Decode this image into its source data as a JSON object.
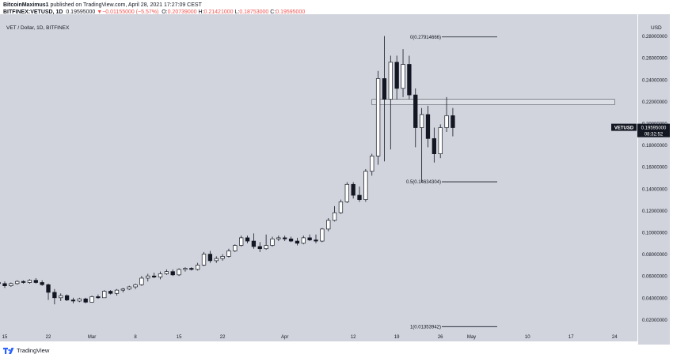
{
  "header": {
    "author": "BitcoinMaximus1",
    "published": " published on TradingView.com, April 28, 2021 17:27:09 CEST",
    "symbol": "BITFINEX:VETUSD, 1D",
    "price": "0.19595000",
    "change": "−0.01155000 (−5.57%)",
    "o_label": "O:",
    "o_val": "0.20739000",
    "h_label": "H:",
    "h_val": "0.21421000",
    "l_label": "L:",
    "l_val": "0.18753000",
    "c_label": "C:",
    "c_val": "0.19595000"
  },
  "footer": {
    "brand": "TradingView"
  },
  "colors": {
    "background": "#d1d4dc",
    "up_candle": "#ffffff",
    "down_candle": "#131722",
    "line": "#131722",
    "label_bg": "#131722"
  },
  "chart_data": {
    "type": "candlestick",
    "title": "VET / Dollar, 1D, BITFINEX",
    "ylabel": "USD",
    "ylim": [
      0.0,
      0.3
    ],
    "y_ticks": [
      0.02,
      0.04,
      0.06,
      0.08,
      0.1,
      0.12,
      0.14,
      0.16,
      0.18,
      0.2,
      0.22,
      0.24,
      0.26,
      0.28
    ],
    "y_tick_labels": [
      "0.02000000",
      "0.04000000",
      "0.06000000",
      "0.08000000",
      "0.10000000",
      "0.12000000",
      "0.14000000",
      "0.16000000",
      "0.18000000",
      "0.20000000",
      "0.22000000",
      "0.24000000",
      "0.26000000",
      "0.28000000"
    ],
    "x_tick_labels": [
      "15",
      "22",
      "Mar",
      "8",
      "15",
      "22",
      "Apr",
      "12",
      "19",
      "26",
      "May",
      "10",
      "17",
      "24"
    ],
    "x_tick_dates": [
      "2021-02-15",
      "2021-02-22",
      "2021-03-01",
      "2021-03-08",
      "2021-03-15",
      "2021-03-22",
      "2021-04-01",
      "2021-04-12",
      "2021-04-19",
      "2021-04-26",
      "2021-05-01",
      "2021-05-10",
      "2021-05-17",
      "2021-05-24"
    ],
    "candles": [
      {
        "date": "2021-02-13",
        "o": 0.055,
        "h": 0.057,
        "l": 0.05,
        "c": 0.054
      },
      {
        "date": "2021-02-14",
        "o": 0.054,
        "h": 0.056,
        "l": 0.051,
        "c": 0.053
      },
      {
        "date": "2021-02-15",
        "o": 0.053,
        "h": 0.055,
        "l": 0.049,
        "c": 0.051
      },
      {
        "date": "2021-02-16",
        "o": 0.051,
        "h": 0.054,
        "l": 0.05,
        "c": 0.053
      },
      {
        "date": "2021-02-17",
        "o": 0.053,
        "h": 0.056,
        "l": 0.052,
        "c": 0.055
      },
      {
        "date": "2021-02-18",
        "o": 0.055,
        "h": 0.056,
        "l": 0.053,
        "c": 0.054
      },
      {
        "date": "2021-02-19",
        "o": 0.054,
        "h": 0.057,
        "l": 0.053,
        "c": 0.056
      },
      {
        "date": "2021-02-20",
        "o": 0.056,
        "h": 0.058,
        "l": 0.053,
        "c": 0.054
      },
      {
        "date": "2021-02-21",
        "o": 0.054,
        "h": 0.056,
        "l": 0.051,
        "c": 0.052
      },
      {
        "date": "2021-02-22",
        "o": 0.052,
        "h": 0.053,
        "l": 0.038,
        "c": 0.045
      },
      {
        "date": "2021-02-23",
        "o": 0.045,
        "h": 0.048,
        "l": 0.034,
        "c": 0.04
      },
      {
        "date": "2021-02-24",
        "o": 0.04,
        "h": 0.044,
        "l": 0.037,
        "c": 0.042
      },
      {
        "date": "2021-02-25",
        "o": 0.042,
        "h": 0.043,
        "l": 0.037,
        "c": 0.038
      },
      {
        "date": "2021-02-26",
        "o": 0.038,
        "h": 0.04,
        "l": 0.035,
        "c": 0.037
      },
      {
        "date": "2021-02-27",
        "o": 0.037,
        "h": 0.04,
        "l": 0.036,
        "c": 0.039
      },
      {
        "date": "2021-02-28",
        "o": 0.039,
        "h": 0.04,
        "l": 0.035,
        "c": 0.036
      },
      {
        "date": "2021-03-01",
        "o": 0.036,
        "h": 0.042,
        "l": 0.036,
        "c": 0.041
      },
      {
        "date": "2021-03-02",
        "o": 0.041,
        "h": 0.043,
        "l": 0.039,
        "c": 0.04
      },
      {
        "date": "2021-03-03",
        "o": 0.04,
        "h": 0.047,
        "l": 0.04,
        "c": 0.046
      },
      {
        "date": "2021-03-04",
        "o": 0.046,
        "h": 0.047,
        "l": 0.043,
        "c": 0.044
      },
      {
        "date": "2021-03-05",
        "o": 0.044,
        "h": 0.048,
        "l": 0.042,
        "c": 0.047
      },
      {
        "date": "2021-03-06",
        "o": 0.047,
        "h": 0.049,
        "l": 0.045,
        "c": 0.048
      },
      {
        "date": "2021-03-07",
        "o": 0.048,
        "h": 0.051,
        "l": 0.047,
        "c": 0.05
      },
      {
        "date": "2021-03-08",
        "o": 0.05,
        "h": 0.053,
        "l": 0.048,
        "c": 0.052
      },
      {
        "date": "2021-03-09",
        "o": 0.052,
        "h": 0.06,
        "l": 0.051,
        "c": 0.058
      },
      {
        "date": "2021-03-10",
        "o": 0.058,
        "h": 0.062,
        "l": 0.055,
        "c": 0.06
      },
      {
        "date": "2021-03-11",
        "o": 0.06,
        "h": 0.063,
        "l": 0.058,
        "c": 0.059
      },
      {
        "date": "2021-03-12",
        "o": 0.059,
        "h": 0.064,
        "l": 0.057,
        "c": 0.062
      },
      {
        "date": "2021-03-13",
        "o": 0.062,
        "h": 0.066,
        "l": 0.061,
        "c": 0.064
      },
      {
        "date": "2021-03-14",
        "o": 0.064,
        "h": 0.066,
        "l": 0.06,
        "c": 0.061
      },
      {
        "date": "2021-03-15",
        "o": 0.061,
        "h": 0.067,
        "l": 0.06,
        "c": 0.066
      },
      {
        "date": "2021-03-16",
        "o": 0.066,
        "h": 0.068,
        "l": 0.064,
        "c": 0.067
      },
      {
        "date": "2021-03-17",
        "o": 0.067,
        "h": 0.068,
        "l": 0.065,
        "c": 0.066
      },
      {
        "date": "2021-03-18",
        "o": 0.066,
        "h": 0.072,
        "l": 0.065,
        "c": 0.07
      },
      {
        "date": "2021-03-19",
        "o": 0.07,
        "h": 0.082,
        "l": 0.069,
        "c": 0.08
      },
      {
        "date": "2021-03-20",
        "o": 0.08,
        "h": 0.083,
        "l": 0.072,
        "c": 0.074
      },
      {
        "date": "2021-03-21",
        "o": 0.074,
        "h": 0.078,
        "l": 0.072,
        "c": 0.076
      },
      {
        "date": "2021-03-22",
        "o": 0.076,
        "h": 0.08,
        "l": 0.074,
        "c": 0.078
      },
      {
        "date": "2021-03-23",
        "o": 0.078,
        "h": 0.085,
        "l": 0.077,
        "c": 0.083
      },
      {
        "date": "2021-03-24",
        "o": 0.083,
        "h": 0.089,
        "l": 0.082,
        "c": 0.088
      },
      {
        "date": "2021-03-25",
        "o": 0.088,
        "h": 0.097,
        "l": 0.087,
        "c": 0.095
      },
      {
        "date": "2021-03-26",
        "o": 0.095,
        "h": 0.097,
        "l": 0.09,
        "c": 0.092
      },
      {
        "date": "2021-03-27",
        "o": 0.092,
        "h": 0.099,
        "l": 0.085,
        "c": 0.087
      },
      {
        "date": "2021-03-28",
        "o": 0.087,
        "h": 0.091,
        "l": 0.082,
        "c": 0.085
      },
      {
        "date": "2021-03-29",
        "o": 0.085,
        "h": 0.098,
        "l": 0.084,
        "c": 0.088
      },
      {
        "date": "2021-03-30",
        "o": 0.088,
        "h": 0.096,
        "l": 0.087,
        "c": 0.094
      },
      {
        "date": "2021-03-31",
        "o": 0.094,
        "h": 0.097,
        "l": 0.092,
        "c": 0.095
      },
      {
        "date": "2021-04-01",
        "o": 0.095,
        "h": 0.097,
        "l": 0.092,
        "c": 0.094
      },
      {
        "date": "2021-04-02",
        "o": 0.094,
        "h": 0.096,
        "l": 0.091,
        "c": 0.092
      },
      {
        "date": "2021-04-03",
        "o": 0.092,
        "h": 0.095,
        "l": 0.088,
        "c": 0.09
      },
      {
        "date": "2021-04-04",
        "o": 0.09,
        "h": 0.097,
        "l": 0.089,
        "c": 0.095
      },
      {
        "date": "2021-04-05",
        "o": 0.095,
        "h": 0.098,
        "l": 0.092,
        "c": 0.093
      },
      {
        "date": "2021-04-06",
        "o": 0.093,
        "h": 0.098,
        "l": 0.09,
        "c": 0.092
      },
      {
        "date": "2021-04-07",
        "o": 0.092,
        "h": 0.104,
        "l": 0.091,
        "c": 0.103
      },
      {
        "date": "2021-04-08",
        "o": 0.103,
        "h": 0.113,
        "l": 0.101,
        "c": 0.111
      },
      {
        "date": "2021-04-09",
        "o": 0.111,
        "h": 0.124,
        "l": 0.11,
        "c": 0.118
      },
      {
        "date": "2021-04-10",
        "o": 0.118,
        "h": 0.13,
        "l": 0.117,
        "c": 0.128
      },
      {
        "date": "2021-04-11",
        "o": 0.128,
        "h": 0.146,
        "l": 0.127,
        "c": 0.144
      },
      {
        "date": "2021-04-12",
        "o": 0.144,
        "h": 0.146,
        "l": 0.131,
        "c": 0.134
      },
      {
        "date": "2021-04-13",
        "o": 0.134,
        "h": 0.142,
        "l": 0.128,
        "c": 0.13
      },
      {
        "date": "2021-04-14",
        "o": 0.13,
        "h": 0.158,
        "l": 0.128,
        "c": 0.156
      },
      {
        "date": "2021-04-15",
        "o": 0.156,
        "h": 0.172,
        "l": 0.152,
        "c": 0.17
      },
      {
        "date": "2021-04-16",
        "o": 0.17,
        "h": 0.248,
        "l": 0.162,
        "c": 0.241
      },
      {
        "date": "2021-04-17",
        "o": 0.241,
        "h": 0.28,
        "l": 0.165,
        "c": 0.222
      },
      {
        "date": "2021-04-18",
        "o": 0.222,
        "h": 0.262,
        "l": 0.176,
        "c": 0.256
      },
      {
        "date": "2021-04-19",
        "o": 0.256,
        "h": 0.262,
        "l": 0.222,
        "c": 0.232
      },
      {
        "date": "2021-04-20",
        "o": 0.232,
        "h": 0.268,
        "l": 0.224,
        "c": 0.254
      },
      {
        "date": "2021-04-21",
        "o": 0.254,
        "h": 0.262,
        "l": 0.222,
        "c": 0.226
      },
      {
        "date": "2021-04-22",
        "o": 0.226,
        "h": 0.232,
        "l": 0.178,
        "c": 0.196
      },
      {
        "date": "2021-04-23",
        "o": 0.196,
        "h": 0.214,
        "l": 0.146,
        "c": 0.208
      },
      {
        "date": "2021-04-24",
        "o": 0.208,
        "h": 0.216,
        "l": 0.178,
        "c": 0.186
      },
      {
        "date": "2021-04-25",
        "o": 0.186,
        "h": 0.196,
        "l": 0.164,
        "c": 0.172
      },
      {
        "date": "2021-04-26",
        "o": 0.172,
        "h": 0.199,
        "l": 0.168,
        "c": 0.196
      },
      {
        "date": "2021-04-27",
        "o": 0.196,
        "h": 0.224,
        "l": 0.192,
        "c": 0.207
      },
      {
        "date": "2021-04-28",
        "o": 0.207,
        "h": 0.214,
        "l": 0.188,
        "c": 0.196
      }
    ],
    "fib_levels": [
      {
        "label": "0(0.27914666)",
        "value": 0.27914666
      },
      {
        "label": "0.5(0.14634304)",
        "value": 0.14634304
      },
      {
        "label": "1(0.01353942)",
        "value": 0.01353942
      }
    ],
    "resistance_zone": {
      "from": 0.217,
      "to": 0.222,
      "start_date": "2021-04-15",
      "end_date": "2021-05-24"
    },
    "last_price_tag": {
      "symbol": "VETUSD",
      "price": "0.19595000",
      "countdown": "08:32:52",
      "value": 0.19595
    }
  }
}
